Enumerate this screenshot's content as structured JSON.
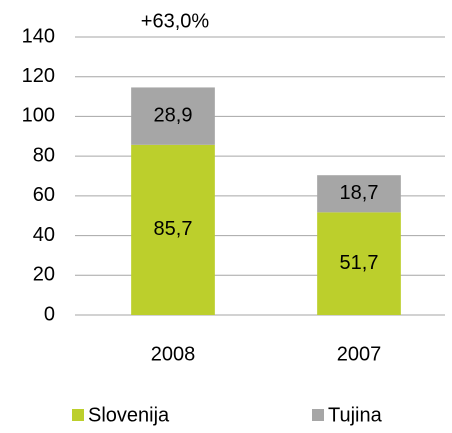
{
  "chart_data": {
    "type": "stacked_bar",
    "annotation": "+63,0%",
    "categories": [
      "2008",
      "2007"
    ],
    "series": [
      {
        "name": "Slovenija",
        "color": "#bccf2c",
        "values": [
          85.7,
          51.7
        ],
        "value_labels": [
          "85,7",
          "51,7"
        ]
      },
      {
        "name": "Tujina",
        "color": "#a6a6a6",
        "values": [
          28.9,
          18.7
        ],
        "value_labels": [
          "28,9",
          "18,7"
        ]
      }
    ],
    "ylim": [
      0,
      140
    ],
    "yticks": [
      0,
      20,
      40,
      60,
      80,
      100,
      120,
      140
    ],
    "grid": true
  }
}
